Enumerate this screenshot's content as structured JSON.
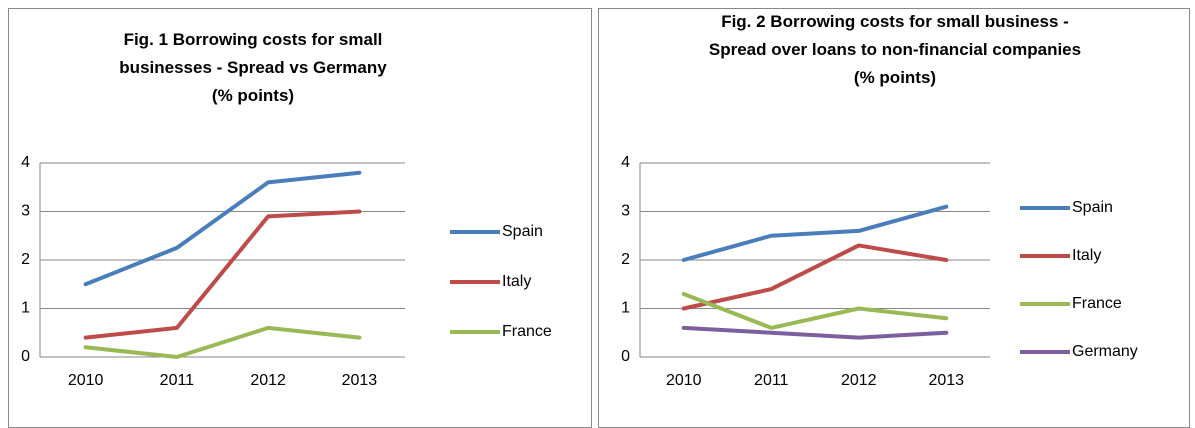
{
  "chart_data": [
    {
      "type": "line",
      "title": "Fig. 1 Borrowing costs for small businesses - Spread vs Germany (% points)",
      "categories": [
        "2010",
        "2011",
        "2012",
        "2013"
      ],
      "ylim": [
        0,
        4
      ],
      "yticks": [
        0,
        1,
        2,
        3,
        4
      ],
      "grid": true,
      "series": [
        {
          "name": "Spain",
          "color": "#4a7ebb",
          "values": [
            1.5,
            2.25,
            3.6,
            3.8
          ]
        },
        {
          "name": "Italy",
          "color": "#be4b48",
          "values": [
            0.4,
            0.6,
            2.9,
            3.0
          ]
        },
        {
          "name": "France",
          "color": "#98b954",
          "values": [
            0.2,
            0,
            0.6,
            0.4
          ]
        }
      ]
    },
    {
      "type": "line",
      "title": "Fig. 2 Borrowing costs for small business - Spread over loans to non-financial companies (% points)",
      "categories": [
        "2010",
        "2011",
        "2012",
        "2013"
      ],
      "ylim": [
        0,
        4
      ],
      "yticks": [
        0,
        1,
        2,
        3,
        4
      ],
      "grid": true,
      "series": [
        {
          "name": "Spain",
          "color": "#4a7ebb",
          "values": [
            2.0,
            2.5,
            2.6,
            3.1
          ]
        },
        {
          "name": "Italy",
          "color": "#be4b48",
          "values": [
            1.0,
            1.4,
            2.3,
            2.0
          ]
        },
        {
          "name": "France",
          "color": "#98b954",
          "values": [
            1.3,
            0.6,
            1.0,
            0.8
          ]
        },
        {
          "name": "Germany",
          "color": "#7d5fa0",
          "values": [
            0.6,
            0.5,
            0.4,
            0.5
          ]
        }
      ]
    }
  ]
}
